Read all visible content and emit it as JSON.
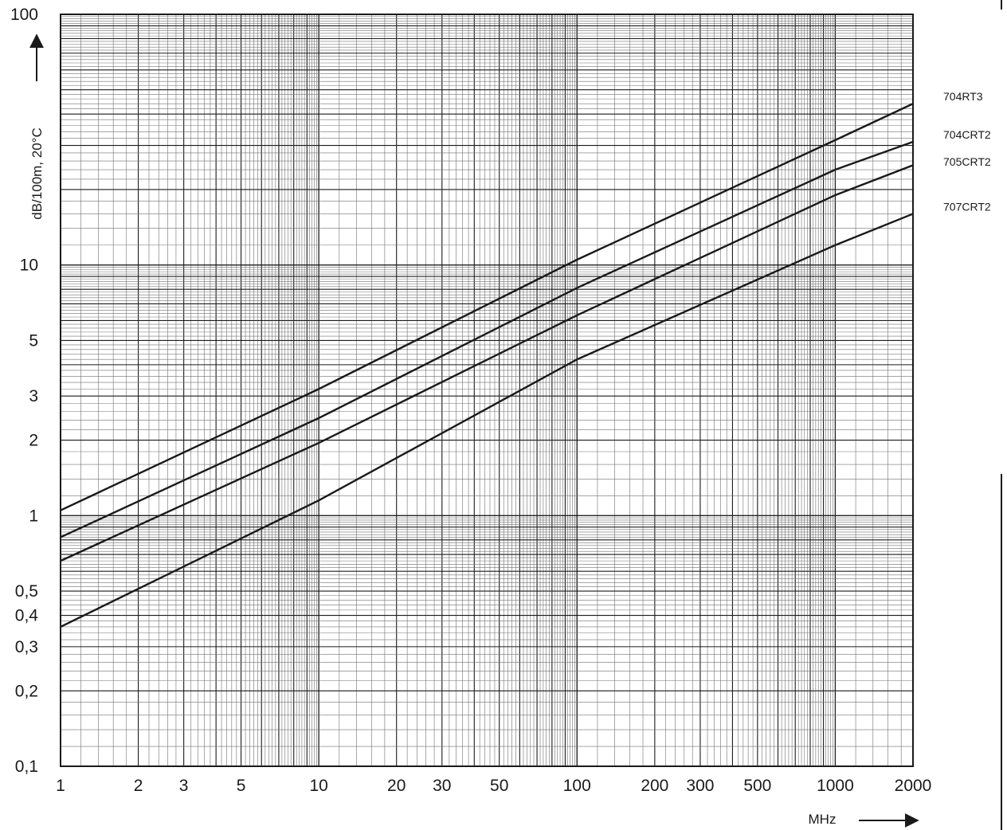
{
  "chart_data": {
    "type": "line",
    "xscale": "log",
    "yscale": "log",
    "xlim": [
      1,
      2000
    ],
    "ylim": [
      0.1,
      100
    ],
    "grid": true,
    "xlabel": "MHz",
    "ylabel": "dB/100m, 20°C",
    "x_ticks": [
      "1",
      "2",
      "3",
      "5",
      "10",
      "20",
      "30",
      "50",
      "100",
      "200",
      "300",
      "500",
      "1000",
      "2000"
    ],
    "x_tick_values": [
      1,
      2,
      3,
      5,
      10,
      20,
      30,
      50,
      100,
      200,
      300,
      500,
      1000,
      2000
    ],
    "y_ticks": [
      "0,1",
      "0,2",
      "0,3",
      "0,4",
      "0,5",
      "1",
      "2",
      "3",
      "5",
      "10",
      "100"
    ],
    "y_tick_values": [
      0.1,
      0.2,
      0.3,
      0.4,
      0.5,
      1,
      2,
      3,
      5,
      10,
      100
    ],
    "x": [
      1,
      10,
      100,
      1000,
      2000
    ],
    "series": [
      {
        "name": "704RT3",
        "values": [
          1.05,
          3.2,
          10.5,
          31.5,
          44
        ]
      },
      {
        "name": "704CRT2",
        "values": [
          0.82,
          2.45,
          8.1,
          24,
          31
        ]
      },
      {
        "name": "705CRT2",
        "values": [
          0.66,
          1.95,
          6.3,
          19,
          25
        ]
      },
      {
        "name": "707CRT2",
        "values": [
          0.36,
          1.15,
          4.2,
          12,
          16
        ]
      }
    ]
  },
  "colors": {
    "line": "#1a1a1a",
    "grid_minor": "#707070",
    "grid_major": "#1a1a1a",
    "background": "#ffffff"
  }
}
